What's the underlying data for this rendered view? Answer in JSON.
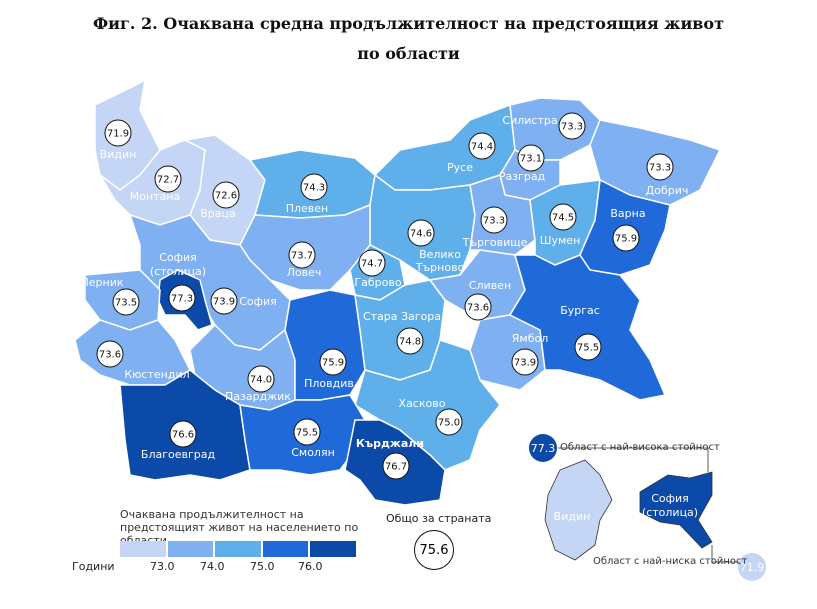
{
  "title_line1": "Фиг. 2. Очаквана средна продължителност на предстоящия живот",
  "title_line2": "по области",
  "colors": {
    "c1": "#c5d5f5",
    "c2": "#7fb0f2",
    "c3": "#5fb0ea",
    "c4": "#1f6ad8",
    "c5": "#0b4aa8"
  },
  "regions": [
    {
      "name": "Видин",
      "value": "71.9"
    },
    {
      "name": "Монтана",
      "value": "72.7"
    },
    {
      "name": "Враца",
      "value": "72.6"
    },
    {
      "name": "Плевен",
      "value": "74.3"
    },
    {
      "name": "Русе",
      "value": "74.4"
    },
    {
      "name": "Силистра",
      "value": "73.3"
    },
    {
      "name": "Разград",
      "value": "73.1"
    },
    {
      "name": "Добрич",
      "value": "73.3"
    },
    {
      "name": "Велико Търново",
      "value": "74.6"
    },
    {
      "name": "Търговище",
      "value": "73.3"
    },
    {
      "name": "Шумен",
      "value": "74.5"
    },
    {
      "name": "Варна",
      "value": "75.9"
    },
    {
      "name": "София (столица)",
      "value": "77.3"
    },
    {
      "name": "Ловеч",
      "value": "73.7"
    },
    {
      "name": "Габрово",
      "value": "74.7"
    },
    {
      "name": "Перник",
      "value": "73.5"
    },
    {
      "name": "София",
      "value": "73.9"
    },
    {
      "name": "Сливен",
      "value": "73.6"
    },
    {
      "name": "Стара Загора",
      "value": "74.8"
    },
    {
      "name": "Бургас",
      "value": "75.5"
    },
    {
      "name": "Кюстендил",
      "value": "73.6"
    },
    {
      "name": "Ямбол",
      "value": "73.9"
    },
    {
      "name": "Пазарджик",
      "value": "74.0"
    },
    {
      "name": "Пловдив",
      "value": "75.9"
    },
    {
      "name": "Хасково",
      "value": "75.0"
    },
    {
      "name": "Благоевград",
      "value": "76.6"
    },
    {
      "name": "Смолян",
      "value": "75.5"
    },
    {
      "name": "Кърджали",
      "value": "76.7"
    }
  ],
  "legend": {
    "title": "Очаквана продължителност на предстоящият живот на населението по области",
    "unit": "Години",
    "ticks": [
      "73.0",
      "74.0",
      "75.0",
      "76.0"
    ]
  },
  "total": {
    "label": "Общо за страната",
    "value": "75.6"
  },
  "highest": {
    "label": "Област с най-висока стойност",
    "value": "77.3",
    "region": "София (столица)"
  },
  "lowest": {
    "label": "Област с най-ниска стойност",
    "value": "71.9",
    "region": "Видин"
  }
}
